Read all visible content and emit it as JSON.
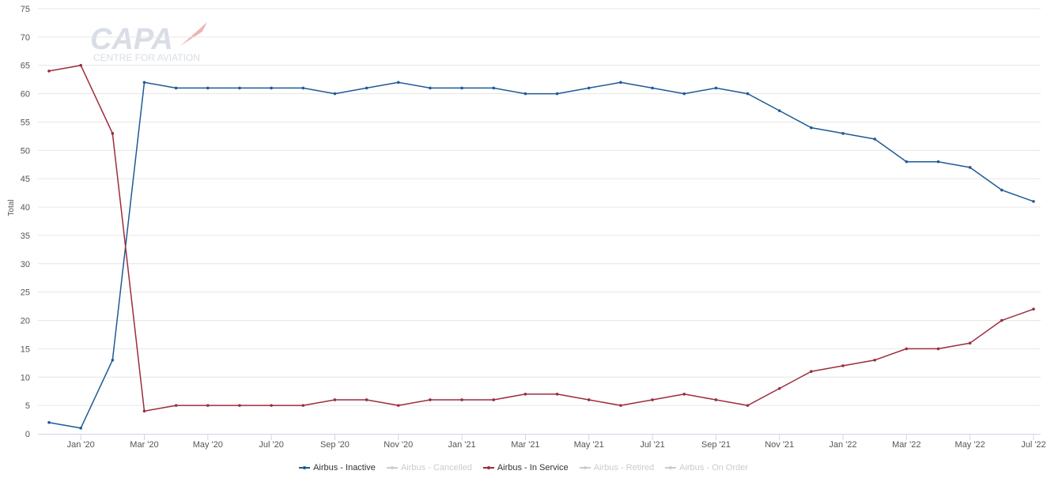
{
  "logo": {
    "main": "CAPA",
    "sub": "CENTRE FOR AVIATION"
  },
  "chart_data": {
    "type": "line",
    "ylabel": "Total",
    "ylim": [
      0,
      75
    ],
    "yticks": [
      0,
      5,
      10,
      15,
      20,
      25,
      30,
      35,
      40,
      45,
      50,
      55,
      60,
      65,
      70,
      75
    ],
    "grid": true,
    "legend_position": "bottom",
    "x_labels": [
      {
        "index": 1,
        "label": "Jan '20"
      },
      {
        "index": 3,
        "label": "Mar '20"
      },
      {
        "index": 5,
        "label": "May '20"
      },
      {
        "index": 7,
        "label": "Jul '20"
      },
      {
        "index": 9,
        "label": "Sep '20"
      },
      {
        "index": 11,
        "label": "Nov '20"
      },
      {
        "index": 13,
        "label": "Jan '21"
      },
      {
        "index": 15,
        "label": "Mar '21"
      },
      {
        "index": 17,
        "label": "May '21"
      },
      {
        "index": 19,
        "label": "Jul '21"
      },
      {
        "index": 21,
        "label": "Sep '21"
      },
      {
        "index": 23,
        "label": "Nov '21"
      },
      {
        "index": 25,
        "label": "Jan '22"
      },
      {
        "index": 27,
        "label": "Mar '22"
      },
      {
        "index": 29,
        "label": "May '22"
      },
      {
        "index": 31,
        "label": "Jul '22"
      }
    ],
    "series": [
      {
        "name": "Airbus - Inactive",
        "color": "#1f5a96",
        "visible": true,
        "values": [
          2,
          1,
          13,
          62,
          61,
          61,
          61,
          61,
          61,
          60,
          61,
          62,
          61,
          61,
          61,
          60,
          60,
          61,
          62,
          61,
          60,
          61,
          60,
          57,
          54,
          53,
          52,
          48,
          48,
          47,
          43,
          41
        ]
      },
      {
        "name": "Airbus - Cancelled",
        "color": "#cccccc",
        "visible": false,
        "values": []
      },
      {
        "name": "Airbus - In Service",
        "color": "#9b2c3e",
        "visible": true,
        "values": [
          64,
          65,
          53,
          4,
          5,
          5,
          5,
          5,
          5,
          6,
          6,
          5,
          6,
          6,
          6,
          7,
          7,
          6,
          5,
          6,
          7,
          6,
          5,
          8,
          11,
          12,
          13,
          15,
          15,
          16,
          20,
          22
        ]
      },
      {
        "name": "Airbus - Retired",
        "color": "#cccccc",
        "visible": false,
        "values": []
      },
      {
        "name": "Airbus - On Order",
        "color": "#cccccc",
        "visible": false,
        "values": []
      }
    ]
  }
}
